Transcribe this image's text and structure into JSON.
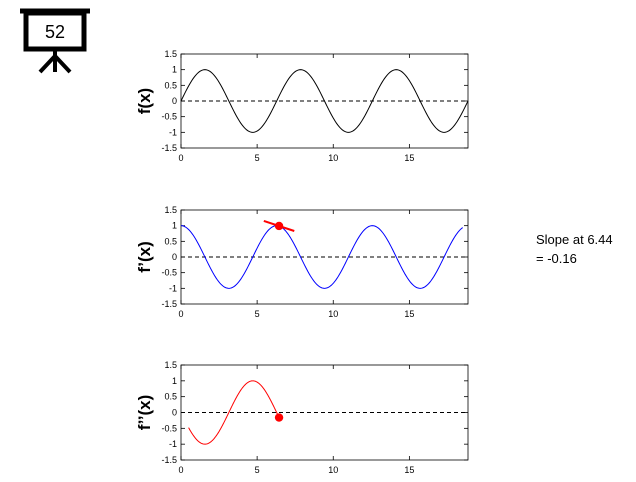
{
  "slide_number": "52",
  "annotation": {
    "line1": "Slope at 6.44",
    "line2": "= -0.16"
  },
  "chart_data": [
    {
      "type": "line",
      "ylabel": "f(x)",
      "xlim": [
        0,
        18.85
      ],
      "ylim": [
        -1.5,
        1.5
      ],
      "xticks": [
        0,
        5,
        10,
        15
      ],
      "yticks": [
        -1.5,
        -1,
        -0.5,
        0,
        0.5,
        1,
        1.5
      ],
      "function": "sin(x)",
      "x_range": [
        0,
        18.85
      ],
      "reference_line": {
        "y": 0,
        "style": "dashed"
      },
      "color": "#000000"
    },
    {
      "type": "line",
      "ylabel": "f’(x)",
      "xlim": [
        0,
        18.85
      ],
      "ylim": [
        -1.5,
        1.5
      ],
      "xticks": [
        0,
        5,
        10,
        15
      ],
      "yticks": [
        -1.5,
        -1,
        -0.5,
        0,
        0.5,
        1,
        1.5
      ],
      "function": "cos(x)",
      "x_range": [
        0,
        18.5
      ],
      "reference_line": {
        "y": 0,
        "style": "dashed"
      },
      "color": "#0000ff",
      "marker": {
        "x": 6.44,
        "y": 0.99,
        "color": "#ff0000"
      },
      "tangent": {
        "x": 6.44,
        "y": 0.99,
        "slope": -0.16,
        "half_width": 1.0,
        "color": "#ff0000"
      }
    },
    {
      "type": "line",
      "ylabel": "f’’(x)",
      "xlim": [
        0,
        18.85
      ],
      "ylim": [
        -1.5,
        1.5
      ],
      "xticks": [
        0,
        5,
        10,
        15
      ],
      "yticks": [
        -1.5,
        -1,
        -0.5,
        0,
        0.5,
        1,
        1.5
      ],
      "function": "-sin(x)",
      "x_range": [
        0.5,
        6.44
      ],
      "reference_line": {
        "y": 0,
        "style": "dashed"
      },
      "color": "#ff0000",
      "marker": {
        "x": 6.44,
        "y": -0.16,
        "color": "#ff0000"
      }
    }
  ]
}
